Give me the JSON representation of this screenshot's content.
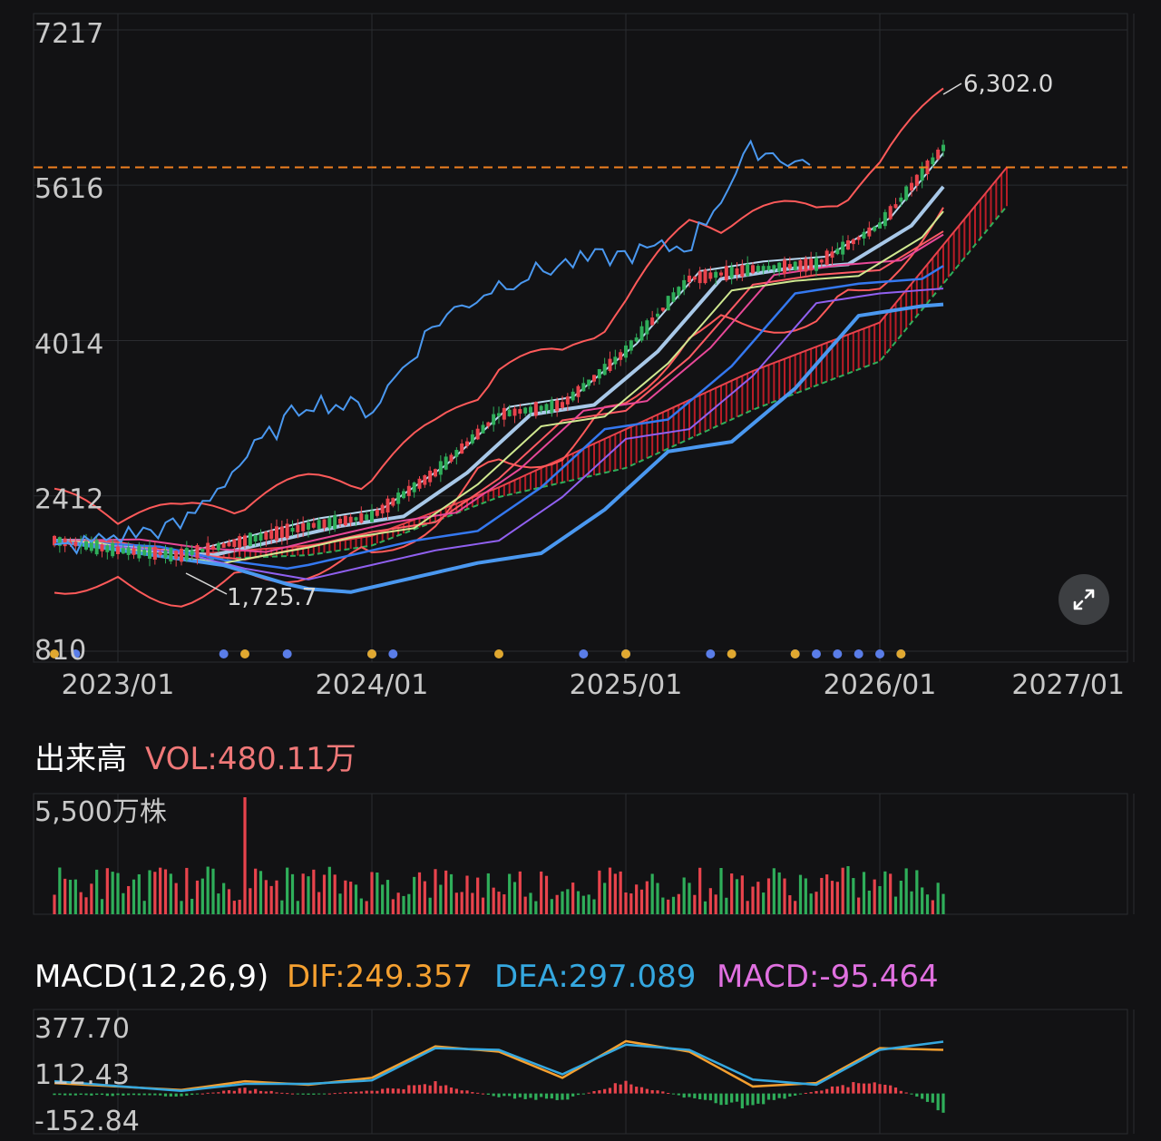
{
  "colors": {
    "background": "#121214",
    "grid": "#2a2c30",
    "axis_text": "#c8c8c8",
    "up": "#e8434c",
    "down": "#2fae5a",
    "dif": "#f5a030",
    "dea": "#35a8e0",
    "macd": "#e070e0",
    "vol_value": "#f07878",
    "price_line": "#f08020",
    "moving_averages": [
      "#b8d8f0",
      "#a8c8e8",
      "#ff5a64",
      "#e84898",
      "#3478f0",
      "#d0e890",
      "#9060f0",
      "#4a98f0"
    ]
  },
  "chart_data": [
    {
      "type": "candlestick",
      "y_ticks": [
        "7217",
        "5616",
        "4014",
        "2412",
        "810"
      ],
      "ylim": [
        810,
        7217
      ],
      "x_ticks": [
        "2023/01",
        "2024/01",
        "2025/01",
        "2026/01",
        "2027/01"
      ],
      "annotations": {
        "high": "6,302.0",
        "low": "1,725.7"
      },
      "reference_price": 5800,
      "grid": true,
      "price_path": {
        "x": [
          "2022/10",
          "2023/01",
          "2023/04",
          "2023/07",
          "2023/10",
          "2024/01",
          "2024/04",
          "2024/07",
          "2024/10",
          "2025/01",
          "2025/04",
          "2025/07",
          "2025/10",
          "2026/01",
          "2026/04"
        ],
        "close": [
          1950,
          1850,
          1800,
          1950,
          2100,
          2200,
          2650,
          3250,
          3350,
          3900,
          4650,
          4750,
          4800,
          5200,
          6000
        ]
      },
      "lagging_span": {
        "x": [
          "2022/10",
          "2023/01",
          "2023/04",
          "2023/07",
          "2023/10",
          "2024/01",
          "2024/04",
          "2024/07",
          "2024/10",
          "2025/01",
          "2025/04",
          "2025/07",
          "2025/10"
        ],
        "close": [
          1850,
          2000,
          2100,
          2800,
          3400,
          3300,
          4200,
          4600,
          4800,
          4900,
          5000,
          6000,
          5800
        ]
      },
      "cloud": {
        "x": [
          "2023/04",
          "2023/10",
          "2024/01",
          "2024/07",
          "2025/01",
          "2025/07",
          "2026/01",
          "2026/07"
        ],
        "upper": [
          1800,
          1900,
          2000,
          2500,
          3100,
          3700,
          4200,
          5800
        ],
        "lower": [
          1750,
          1800,
          1900,
          2400,
          2700,
          3300,
          3800,
          5400
        ]
      },
      "event_markers": {
        "blue": [
          "2022/11",
          "2023/06",
          "2023/09",
          "2024/01",
          "2024/02",
          "2024/11",
          "2025/01",
          "2025/05",
          "2025/09",
          "2025/10",
          "2025/11",
          "2025/12",
          "2026/01",
          "2026/02"
        ],
        "gold": [
          "2022/10",
          "2023/07",
          "2024/01",
          "2024/07",
          "2025/01",
          "2025/06",
          "2025/09",
          "2026/02"
        ]
      }
    },
    {
      "type": "bar",
      "name": "出来高",
      "value_label": "VOL:480.11万",
      "y_tick": "5,500万株",
      "ylim": [
        0,
        5500
      ],
      "unit": "万株",
      "peak": {
        "x": "2023/07",
        "value": 5500
      },
      "last": {
        "x": "2026/04",
        "value": 480.11
      }
    },
    {
      "type": "bar",
      "title": "MACD(12,26,9)",
      "legend": [
        "DIF:249.357",
        "DEA:297.089",
        "MACD:-95.464"
      ],
      "y_ticks": [
        "377.70",
        "112.43",
        "-152.84"
      ],
      "ylim": [
        -152.84,
        377.7
      ],
      "series": [
        {
          "name": "DIF",
          "x": [
            "2022/10",
            "2023/04",
            "2023/07",
            "2023/10",
            "2024/01",
            "2024/04",
            "2024/07",
            "2024/10",
            "2025/01",
            "2025/04",
            "2025/07",
            "2025/10",
            "2026/01",
            "2026/04"
          ],
          "values": [
            60,
            20,
            70,
            50,
            90,
            270,
            240,
            90,
            300,
            240,
            40,
            60,
            260,
            250
          ]
        },
        {
          "name": "DEA",
          "x": [
            "2022/10",
            "2023/04",
            "2023/07",
            "2023/10",
            "2024/01",
            "2024/04",
            "2024/07",
            "2024/10",
            "2025/01",
            "2025/04",
            "2025/07",
            "2025/10",
            "2026/01",
            "2026/04"
          ],
          "values": [
            70,
            15,
            55,
            55,
            75,
            260,
            250,
            110,
            280,
            250,
            80,
            50,
            250,
            297
          ]
        },
        {
          "name": "MACD",
          "x": [
            "2022/10",
            "2023/04",
            "2023/07",
            "2023/10",
            "2024/01",
            "2024/04",
            "2024/07",
            "2024/10",
            "2025/01",
            "2025/04",
            "2025/07",
            "2025/10",
            "2026/01",
            "2026/04"
          ],
          "values": [
            -10,
            -15,
            30,
            -10,
            20,
            60,
            -20,
            -40,
            70,
            -30,
            -80,
            20,
            80,
            -95
          ]
        }
      ]
    }
  ]
}
